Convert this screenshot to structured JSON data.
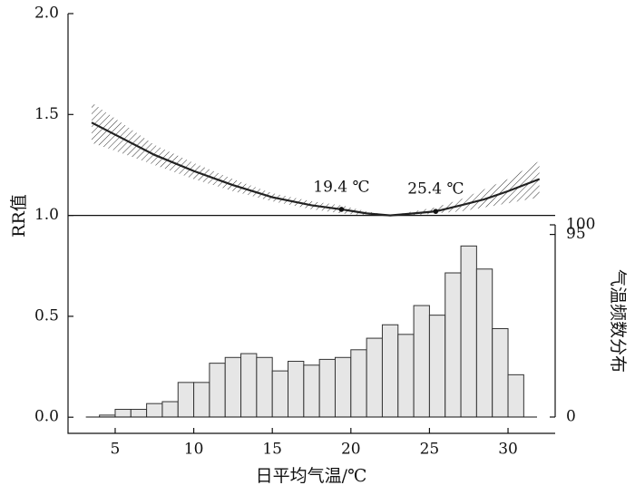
{
  "chart_data": {
    "type": "histogram_rr",
    "y_label": "RR值",
    "x_label": "日平均气温/℃",
    "y2_label": "气温频数分布",
    "xlim": [
      2,
      33
    ],
    "xticks": [
      5,
      10,
      15,
      20,
      25,
      30
    ],
    "ylim": [
      -0.08,
      2.0
    ],
    "yticks": [
      {
        "value": 0,
        "label": "0.0"
      },
      0.5,
      {
        "value": 1,
        "label": "1.0"
      },
      1.5,
      {
        "value": 2,
        "label": "2.0"
      }
    ],
    "y2lim": [
      0,
      100
    ],
    "y2ticks": [
      0,
      95,
      100
    ],
    "reference_line": 1,
    "curve": {
      "color": "#222",
      "x": [
        3.5,
        5,
        7.5,
        10,
        12.5,
        15,
        17.5,
        19.4,
        21,
        22.5,
        24,
        25.4,
        27,
        28.5,
        30,
        32
      ],
      "values": [
        1.46,
        1.4,
        1.3,
        1.22,
        1.15,
        1.09,
        1.05,
        1.03,
        1.01,
        1.0,
        1.01,
        1.02,
        1.05,
        1.08,
        1.12,
        1.18
      ],
      "lower": [
        1.36,
        1.32,
        1.25,
        1.18,
        1.12,
        1.07,
        1.03,
        1.01,
        1.0,
        1.0,
        1.0,
        1.01,
        1.02,
        1.04,
        1.06,
        1.09
      ],
      "upper": [
        1.56,
        1.48,
        1.35,
        1.26,
        1.18,
        1.11,
        1.07,
        1.05,
        1.02,
        1.0,
        1.02,
        1.04,
        1.08,
        1.13,
        1.18,
        1.27
      ]
    },
    "annotations": [
      {
        "text": "19.4 ℃",
        "x": 19.4,
        "y": 1.03
      },
      {
        "text": "25.4 ℃",
        "x": 25.4,
        "y": 1.02
      }
    ],
    "histogram": {
      "axis": "y2",
      "color": "#e6e6e6",
      "bins": [
        4,
        5,
        6,
        7,
        8,
        9,
        10,
        11,
        12,
        13,
        14,
        15,
        16,
        17,
        18,
        19,
        20,
        21,
        22,
        23,
        24,
        25,
        26,
        27,
        28,
        29,
        30,
        31
      ],
      "values": [
        1,
        4,
        4,
        7,
        8,
        18,
        18,
        28,
        31,
        33,
        31,
        24,
        29,
        27,
        30,
        31,
        35,
        41,
        48,
        43,
        58,
        53,
        75,
        89,
        77,
        46,
        22
      ]
    }
  }
}
